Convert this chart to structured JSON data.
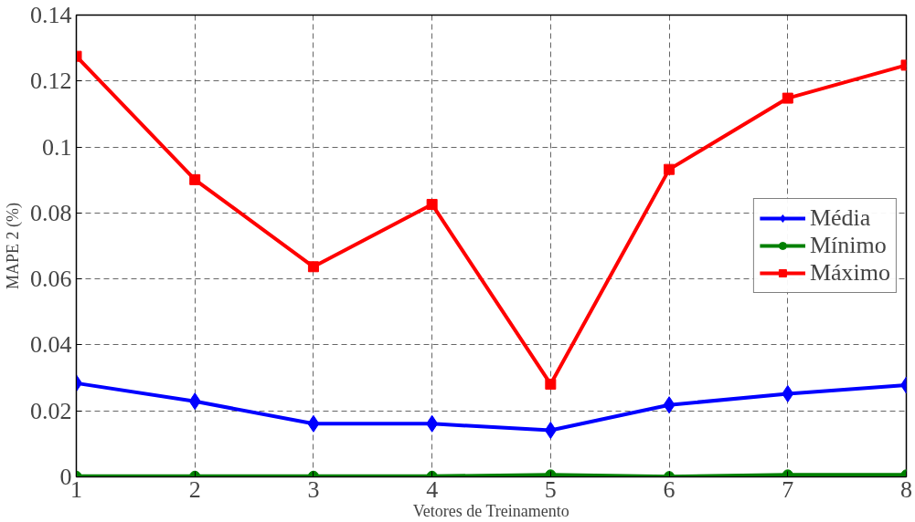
{
  "chart_data": {
    "type": "line",
    "xlabel": "Vetores de Treinamento",
    "ylabel": "MAPE 2 (%)",
    "x": [
      1,
      2,
      3,
      4,
      5,
      6,
      7,
      8
    ],
    "series": [
      {
        "name": "Média",
        "color": "#0000ff",
        "marker": "diamond",
        "values": [
          0.0284,
          0.0229,
          0.0161,
          0.0161,
          0.0141,
          0.0218,
          0.0252,
          0.0278
        ]
      },
      {
        "name": "Mínimo",
        "color": "#008000",
        "marker": "circle",
        "values": [
          0.0002,
          0.0002,
          0.0002,
          0.0002,
          0.0006,
          0.0001,
          0.0006,
          0.0006
        ]
      },
      {
        "name": "Máximo",
        "color": "#ff0000",
        "marker": "square",
        "values": [
          0.1275,
          0.0901,
          0.0637,
          0.0826,
          0.0281,
          0.0932,
          0.1148,
          0.1248
        ]
      }
    ],
    "xlim": [
      1,
      8
    ],
    "ylim": [
      0,
      0.14
    ],
    "xticks": [
      1,
      2,
      3,
      4,
      5,
      6,
      7,
      8
    ],
    "yticks": [
      0,
      0.02,
      0.04,
      0.06,
      0.08,
      0.1,
      0.12,
      0.14
    ],
    "grid": true,
    "legend": "right",
    "line_style": "solid"
  }
}
